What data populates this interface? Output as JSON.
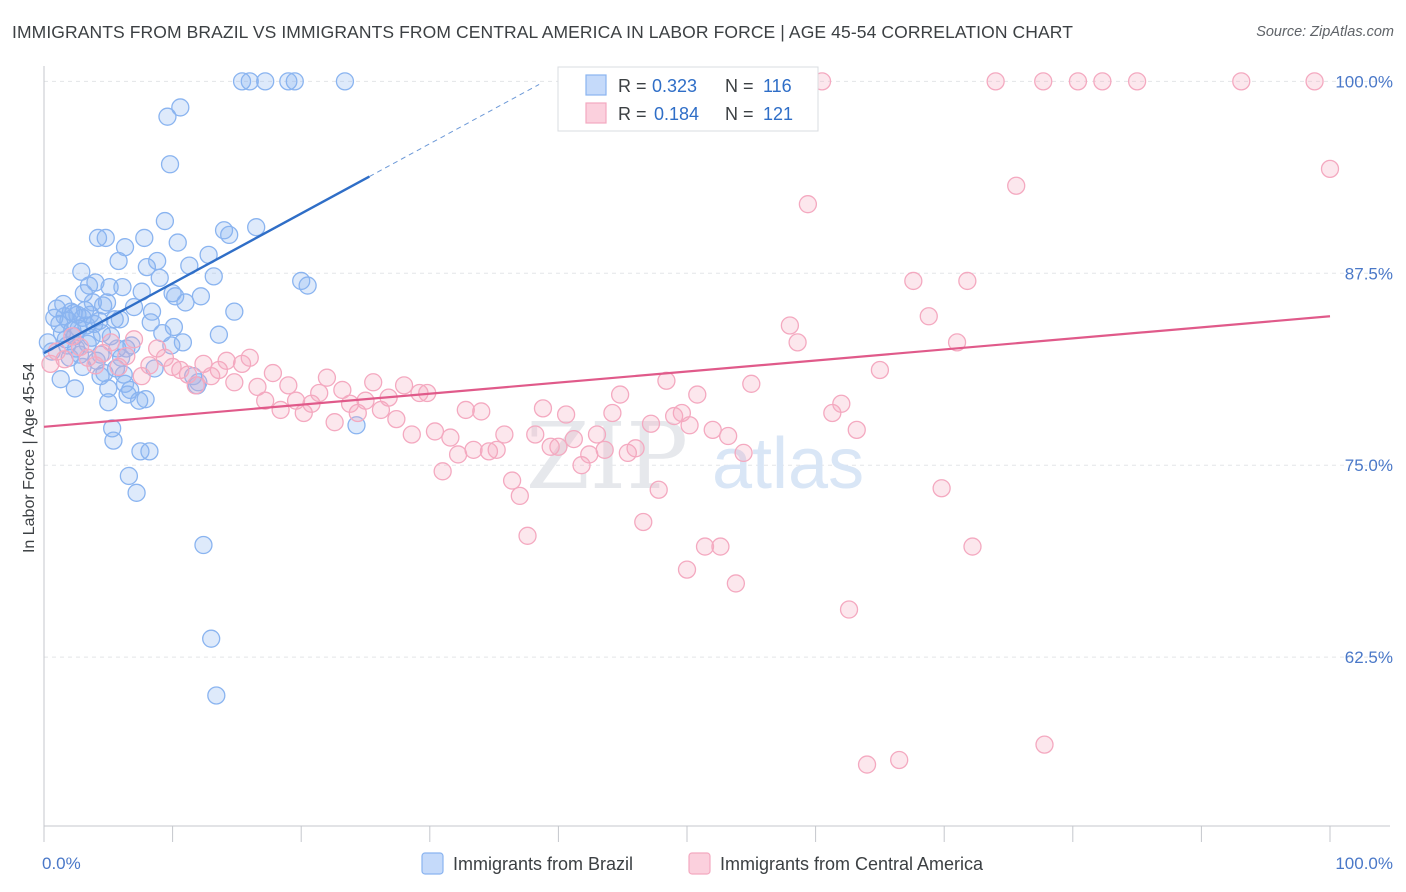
{
  "title": "IMMIGRANTS FROM BRAZIL VS IMMIGRANTS FROM CENTRAL AMERICA IN LABOR FORCE | AGE 45-54 CORRELATION CHART",
  "source": "Source: ZipAtlas.com",
  "watermark": {
    "zip": "ZIP",
    "atlas": "atlas"
  },
  "legend": {
    "r_label": "R =",
    "n_label": "N =",
    "rows": [
      {
        "r": "0.323",
        "n": "116"
      },
      {
        "r": "0.184",
        "n": "121"
      }
    ]
  },
  "chart_data": {
    "type": "scatter",
    "title": "IMMIGRANTS FROM BRAZIL VS IMMIGRANTS FROM CENTRAL AMERICA IN LABOR FORCE | AGE 45-54 CORRELATION CHART",
    "xlabel": "",
    "ylabel": "In Labor Force | Age 45-54",
    "xlim": [
      0,
      100
    ],
    "ylim": [
      51.5,
      101
    ],
    "x_tick_labels": [
      "0.0%",
      "100.0%"
    ],
    "y_ticks": [
      62.5,
      75.0,
      87.5,
      100.0
    ],
    "y_tick_labels": [
      "62.5%",
      "75.0%",
      "87.5%",
      "100.0%"
    ],
    "grid": true,
    "legend_position": "top-center",
    "series": [
      {
        "name": "Immigrants from Brazil",
        "color": "#8ab4f0",
        "line_color": "#2f6ec7",
        "r": 0.323,
        "n": 116,
        "trend": {
          "x0": 0,
          "y0": 82.3,
          "x1": 25.3,
          "y1": 93.8,
          "dash_to_x": 38.5
        },
        "points": [
          [
            0.3,
            83.0
          ],
          [
            0.6,
            82.4
          ],
          [
            0.8,
            84.6
          ],
          [
            1.0,
            85.2
          ],
          [
            1.2,
            84.2
          ],
          [
            1.4,
            83.6
          ],
          [
            1.5,
            85.5
          ],
          [
            1.6,
            84.7
          ],
          [
            1.7,
            83.2
          ],
          [
            1.8,
            82.8
          ],
          [
            1.9,
            84.4
          ],
          [
            2.0,
            82.0
          ],
          [
            2.1,
            85.0
          ],
          [
            2.2,
            83.8
          ],
          [
            2.3,
            84.9
          ],
          [
            2.4,
            83.4
          ],
          [
            2.5,
            82.6
          ],
          [
            2.6,
            84.8
          ],
          [
            2.7,
            83.9
          ],
          [
            2.8,
            82.2
          ],
          [
            2.9,
            87.6
          ],
          [
            3.0,
            84.6
          ],
          [
            3.1,
            86.2
          ],
          [
            3.2,
            85.1
          ],
          [
            3.3,
            84.1
          ],
          [
            3.4,
            82.9
          ],
          [
            3.5,
            86.7
          ],
          [
            3.6,
            84.8
          ],
          [
            3.7,
            83.3
          ],
          [
            3.8,
            85.6
          ],
          [
            3.9,
            84.2
          ],
          [
            4.0,
            86.9
          ],
          [
            4.1,
            81.8
          ],
          [
            4.2,
            89.8
          ],
          [
            4.3,
            84.4
          ],
          [
            4.4,
            82.2
          ],
          [
            4.5,
            83.6
          ],
          [
            4.6,
            85.4
          ],
          [
            4.7,
            81.0
          ],
          [
            4.8,
            89.8
          ],
          [
            4.9,
            85.6
          ],
          [
            5.0,
            80.0
          ],
          [
            5.1,
            86.6
          ],
          [
            5.2,
            83.4
          ],
          [
            5.3,
            77.4
          ],
          [
            5.4,
            76.6
          ],
          [
            5.5,
            84.5
          ],
          [
            5.6,
            81.3
          ],
          [
            5.7,
            82.6
          ],
          [
            5.8,
            88.3
          ],
          [
            5.9,
            84.5
          ],
          [
            6.0,
            82.0
          ],
          [
            6.1,
            86.6
          ],
          [
            6.2,
            80.9
          ],
          [
            6.3,
            89.2
          ],
          [
            6.4,
            82.6
          ],
          [
            6.5,
            79.6
          ],
          [
            6.6,
            74.3
          ],
          [
            6.8,
            82.8
          ],
          [
            7.0,
            85.3
          ],
          [
            7.2,
            73.2
          ],
          [
            7.4,
            79.2
          ],
          [
            7.6,
            86.3
          ],
          [
            7.8,
            89.8
          ],
          [
            8.0,
            87.9
          ],
          [
            8.2,
            75.9
          ],
          [
            8.4,
            85.0
          ],
          [
            8.6,
            81.3
          ],
          [
            8.8,
            88.3
          ],
          [
            9.0,
            87.2
          ],
          [
            9.2,
            83.6
          ],
          [
            9.4,
            90.9
          ],
          [
            9.6,
            97.7
          ],
          [
            9.8,
            94.6
          ],
          [
            10.0,
            86.2
          ],
          [
            10.2,
            86.0
          ],
          [
            10.4,
            89.5
          ],
          [
            10.6,
            98.3
          ],
          [
            10.8,
            83.0
          ],
          [
            11.0,
            85.6
          ],
          [
            11.3,
            88.0
          ],
          [
            11.6,
            80.8
          ],
          [
            12.0,
            80.4
          ],
          [
            12.4,
            69.8
          ],
          [
            12.8,
            88.7
          ],
          [
            13.2,
            87.3
          ],
          [
            13.6,
            83.5
          ],
          [
            14.0,
            90.3
          ],
          [
            14.4,
            90.0
          ],
          [
            14.8,
            85.0
          ],
          [
            15.4,
            100.0
          ],
          [
            16.0,
            100.0
          ],
          [
            17.2,
            100.0
          ],
          [
            19.0,
            100.0
          ],
          [
            19.5,
            100.0
          ],
          [
            20.0,
            87.0
          ],
          [
            23.4,
            100.0
          ],
          [
            24.3,
            77.6
          ],
          [
            13.0,
            63.7
          ],
          [
            13.4,
            60.0
          ],
          [
            16.5,
            90.5
          ],
          [
            20.5,
            86.7
          ],
          [
            7.5,
            75.9
          ],
          [
            5.0,
            79.1
          ],
          [
            6.7,
            79.9
          ],
          [
            3.0,
            81.4
          ],
          [
            1.3,
            80.6
          ],
          [
            8.3,
            84.3
          ],
          [
            9.9,
            82.8
          ],
          [
            11.9,
            80.2
          ],
          [
            2.4,
            80.0
          ],
          [
            4.4,
            80.8
          ],
          [
            6.3,
            80.3
          ],
          [
            7.9,
            79.3
          ],
          [
            10.1,
            84.0
          ],
          [
            12.2,
            86.0
          ]
        ]
      },
      {
        "name": "Immigrants from Central America",
        "color": "#f4a9c0",
        "line_color": "#e05a8a",
        "r": 0.184,
        "n": 121,
        "trend": {
          "x0": 0,
          "y0": 77.5,
          "x1": 100,
          "y1": 84.7
        },
        "points": [
          [
            0.5,
            81.6
          ],
          [
            1.0,
            82.4
          ],
          [
            1.6,
            81.9
          ],
          [
            2.2,
            83.4
          ],
          [
            2.8,
            82.7
          ],
          [
            3.4,
            82.0
          ],
          [
            4.0,
            81.5
          ],
          [
            4.6,
            82.3
          ],
          [
            5.2,
            83.0
          ],
          [
            5.8,
            81.4
          ],
          [
            6.4,
            82.1
          ],
          [
            7.0,
            83.2
          ],
          [
            7.6,
            80.8
          ],
          [
            8.2,
            81.5
          ],
          [
            8.8,
            82.6
          ],
          [
            9.4,
            82.0
          ],
          [
            10.0,
            81.4
          ],
          [
            10.6,
            81.2
          ],
          [
            11.2,
            80.9
          ],
          [
            11.8,
            80.2
          ],
          [
            12.4,
            81.6
          ],
          [
            13.0,
            80.8
          ],
          [
            13.6,
            81.2
          ],
          [
            14.2,
            81.8
          ],
          [
            14.8,
            80.4
          ],
          [
            15.4,
            81.6
          ],
          [
            16.0,
            82.0
          ],
          [
            16.6,
            80.1
          ],
          [
            17.2,
            79.2
          ],
          [
            17.8,
            81.0
          ],
          [
            18.4,
            78.6
          ],
          [
            19.0,
            80.2
          ],
          [
            19.6,
            79.2
          ],
          [
            20.2,
            78.4
          ],
          [
            20.8,
            79.0
          ],
          [
            21.4,
            79.7
          ],
          [
            22.0,
            80.7
          ],
          [
            22.6,
            77.8
          ],
          [
            23.2,
            79.9
          ],
          [
            23.8,
            79.0
          ],
          [
            24.4,
            78.4
          ],
          [
            25.0,
            79.2
          ],
          [
            25.6,
            80.4
          ],
          [
            26.2,
            78.6
          ],
          [
            26.8,
            79.4
          ],
          [
            27.4,
            78.0
          ],
          [
            28.0,
            80.2
          ],
          [
            28.6,
            77.0
          ],
          [
            29.2,
            79.7
          ],
          [
            29.8,
            79.7
          ],
          [
            30.4,
            77.2
          ],
          [
            31.0,
            74.6
          ],
          [
            31.6,
            76.8
          ],
          [
            32.2,
            75.7
          ],
          [
            32.8,
            78.6
          ],
          [
            33.4,
            76.0
          ],
          [
            34.0,
            78.5
          ],
          [
            34.6,
            75.9
          ],
          [
            35.2,
            76.0
          ],
          [
            35.8,
            77.0
          ],
          [
            36.4,
            74.0
          ],
          [
            37.0,
            73.0
          ],
          [
            37.6,
            70.4
          ],
          [
            38.2,
            77.0
          ],
          [
            38.8,
            78.7
          ],
          [
            39.4,
            76.2
          ],
          [
            40.0,
            76.2
          ],
          [
            40.6,
            78.3
          ],
          [
            41.2,
            76.7
          ],
          [
            41.8,
            75.0
          ],
          [
            42.4,
            75.7
          ],
          [
            43.0,
            77.0
          ],
          [
            43.6,
            76.0
          ],
          [
            44.2,
            78.4
          ],
          [
            44.8,
            79.6
          ],
          [
            45.4,
            75.8
          ],
          [
            46.0,
            76.1
          ],
          [
            46.6,
            71.3
          ],
          [
            47.2,
            77.7
          ],
          [
            47.8,
            73.4
          ],
          [
            48.4,
            80.5
          ],
          [
            49.0,
            78.2
          ],
          [
            49.6,
            78.4
          ],
          [
            50.2,
            77.6
          ],
          [
            50.8,
            79.6
          ],
          [
            51.4,
            69.7
          ],
          [
            52.0,
            77.3
          ],
          [
            52.6,
            69.7
          ],
          [
            53.2,
            76.9
          ],
          [
            53.8,
            67.3
          ],
          [
            54.4,
            75.8
          ],
          [
            55.0,
            80.3
          ],
          [
            56.8,
            100.0
          ],
          [
            58.0,
            84.1
          ],
          [
            58.6,
            83.0
          ],
          [
            59.4,
            92.0
          ],
          [
            60.5,
            100.0
          ],
          [
            61.3,
            78.4
          ],
          [
            62.0,
            79.0
          ],
          [
            62.6,
            65.6
          ],
          [
            63.2,
            77.3
          ],
          [
            64.0,
            55.5
          ],
          [
            65.0,
            81.2
          ],
          [
            66.5,
            55.8
          ],
          [
            67.6,
            87.0
          ],
          [
            68.8,
            84.7
          ],
          [
            69.8,
            73.5
          ],
          [
            71.0,
            83.0
          ],
          [
            71.8,
            87.0
          ],
          [
            72.2,
            69.7
          ],
          [
            74.0,
            100.0
          ],
          [
            75.6,
            93.2
          ],
          [
            77.7,
            100.0
          ],
          [
            77.8,
            56.8
          ],
          [
            80.4,
            100.0
          ],
          [
            82.3,
            100.0
          ],
          [
            85.0,
            100.0
          ],
          [
            93.1,
            100.0
          ],
          [
            98.8,
            100.0
          ],
          [
            100.0,
            94.3
          ],
          [
            50.0,
            68.2
          ]
        ]
      }
    ]
  },
  "bottom_legend": [
    {
      "label": "Immigrants from Brazil"
    },
    {
      "label": "Immigrants from Central America"
    }
  ]
}
